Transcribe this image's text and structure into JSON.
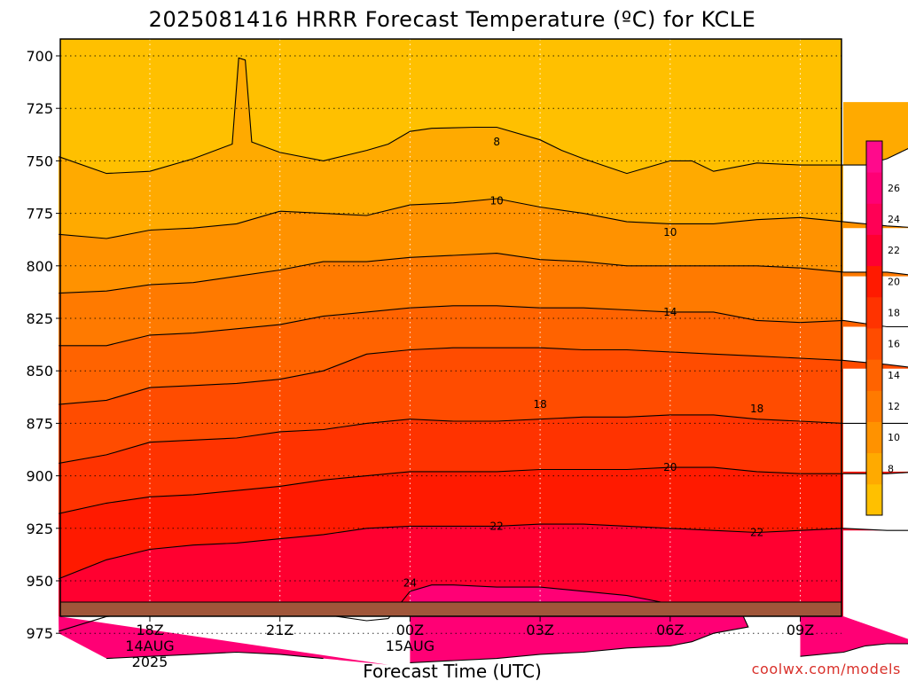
{
  "title": "2025081416 HRRR Forecast Temperature (ºC) for KCLE",
  "credit": "coolwx.com/models",
  "colors": {
    "ground": "#a0563a",
    "contour": "#000000",
    "bands": [
      "#ffc000",
      "#ffaa00",
      "#ff9200",
      "#ff7a00",
      "#ff6300",
      "#ff4c00",
      "#ff3300",
      "#ff1a00",
      "#ff0030",
      "#ff0055",
      "#ff0075",
      "#ff0a8c"
    ]
  },
  "chart_data": {
    "type": "contour",
    "title": "2025081416 HRRR Forecast Temperature (ºC) for KCLE",
    "xlabel": "Forecast Time (UTC)",
    "ylabel": "",
    "x_ticks": [
      {
        "hour": 2,
        "lines": [
          "18Z",
          "14AUG",
          "2025"
        ]
      },
      {
        "hour": 5,
        "lines": [
          "21Z"
        ]
      },
      {
        "hour": 8,
        "lines": [
          "00Z",
          "15AUG"
        ]
      },
      {
        "hour": 11,
        "lines": [
          "03Z"
        ]
      },
      {
        "hour": 14,
        "lines": [
          "06Z"
        ]
      },
      {
        "hour": 17,
        "lines": [
          "09Z"
        ]
      }
    ],
    "y_ticks": [
      700,
      725,
      750,
      775,
      800,
      825,
      850,
      875,
      900,
      925,
      950,
      975
    ],
    "y_inverted": true,
    "grid": true,
    "colorbar": {
      "levels": [
        6,
        8,
        10,
        12,
        14,
        16,
        18,
        20,
        22,
        24,
        26,
        28
      ],
      "labels": [
        8,
        10,
        12,
        14,
        16,
        18,
        20,
        22,
        24,
        26
      ]
    },
    "contours": [
      {
        "level": 8,
        "label": "8",
        "label_at": [
          {
            "hour": 10.0,
            "hpa": 741
          }
        ],
        "points": [
          [
            -0.1,
            748
          ],
          [
            1,
            756
          ],
          [
            2,
            755
          ],
          [
            3,
            749
          ],
          [
            3.9,
            742
          ],
          [
            4.05,
            701
          ],
          [
            4.2,
            702
          ],
          [
            4.35,
            741
          ],
          [
            5,
            746
          ],
          [
            6,
            750
          ],
          [
            7,
            745
          ],
          [
            7.5,
            742
          ],
          [
            8,
            736
          ],
          [
            8.5,
            734.5
          ],
          [
            9.5,
            734
          ],
          [
            10,
            734
          ],
          [
            11,
            740
          ],
          [
            11.5,
            745
          ],
          [
            12,
            749
          ],
          [
            13,
            756
          ],
          [
            13.5,
            753
          ],
          [
            14,
            750
          ],
          [
            14.5,
            750
          ],
          [
            15,
            755
          ],
          [
            16,
            751
          ],
          [
            17,
            752
          ],
          [
            18,
            752
          ],
          [
            18.5,
            752
          ],
          [
            19,
            749
          ],
          [
            19.5,
            744
          ],
          [
            19.8,
            722
          ]
        ]
      },
      {
        "level": 10,
        "label": "10",
        "label_at": [
          {
            "hour": 10.0,
            "hpa": 769
          },
          {
            "hour": 14.0,
            "hpa": 784
          }
        ],
        "points": [
          [
            -0.1,
            785
          ],
          [
            1,
            787
          ],
          [
            2,
            783
          ],
          [
            3,
            782
          ],
          [
            4,
            780
          ],
          [
            5,
            774
          ],
          [
            6,
            775
          ],
          [
            7,
            776
          ],
          [
            8,
            771
          ],
          [
            9,
            770
          ],
          [
            10,
            768
          ],
          [
            11,
            772
          ],
          [
            12,
            775
          ],
          [
            13,
            779
          ],
          [
            14,
            780
          ],
          [
            15,
            780
          ],
          [
            16,
            778
          ],
          [
            17,
            777
          ],
          [
            18,
            779
          ],
          [
            19,
            781
          ],
          [
            19.8,
            782
          ]
        ]
      },
      {
        "level": 12,
        "label": "",
        "label_at": [],
        "points": [
          [
            -0.1,
            813
          ],
          [
            1,
            812
          ],
          [
            2,
            809
          ],
          [
            3,
            808
          ],
          [
            4,
            805
          ],
          [
            5,
            802
          ],
          [
            6,
            798
          ],
          [
            7,
            798
          ],
          [
            8,
            796
          ],
          [
            9,
            795
          ],
          [
            10,
            794
          ],
          [
            11,
            797
          ],
          [
            12,
            798
          ],
          [
            13,
            800
          ],
          [
            14,
            800
          ],
          [
            15,
            800
          ],
          [
            16,
            800
          ],
          [
            17,
            801
          ],
          [
            18,
            803
          ],
          [
            19,
            803
          ],
          [
            19.8,
            805
          ]
        ]
      },
      {
        "level": 14,
        "label": "14",
        "label_at": [
          {
            "hour": 14.0,
            "hpa": 822
          }
        ],
        "points": [
          [
            -0.1,
            838
          ],
          [
            1,
            838
          ],
          [
            2,
            833
          ],
          [
            3,
            832
          ],
          [
            4,
            830
          ],
          [
            5,
            828
          ],
          [
            6,
            824
          ],
          [
            7,
            822
          ],
          [
            8,
            820
          ],
          [
            9,
            819
          ],
          [
            10,
            819
          ],
          [
            11,
            820
          ],
          [
            12,
            820
          ],
          [
            13,
            821
          ],
          [
            14,
            822
          ],
          [
            15,
            822
          ],
          [
            16,
            826
          ],
          [
            17,
            827
          ],
          [
            18,
            826
          ],
          [
            19,
            829
          ],
          [
            19.8,
            829
          ]
        ]
      },
      {
        "level": 16,
        "label": "",
        "label_at": [],
        "points": [
          [
            -0.1,
            866
          ],
          [
            1,
            864
          ],
          [
            2,
            858
          ],
          [
            3,
            857
          ],
          [
            4,
            856
          ],
          [
            5,
            854
          ],
          [
            6,
            850
          ],
          [
            7,
            842
          ],
          [
            8,
            840
          ],
          [
            9,
            839
          ],
          [
            10,
            839
          ],
          [
            11,
            839
          ],
          [
            12,
            840
          ],
          [
            13,
            840
          ],
          [
            14,
            841
          ],
          [
            15,
            842
          ],
          [
            16,
            843
          ],
          [
            17,
            844
          ],
          [
            18,
            845
          ],
          [
            19,
            847
          ],
          [
            19.8,
            849
          ]
        ]
      },
      {
        "level": 18,
        "label": "18",
        "label_at": [
          {
            "hour": 11.0,
            "hpa": 866
          },
          {
            "hour": 16.0,
            "hpa": 868
          }
        ],
        "points": [
          [
            -0.1,
            894
          ],
          [
            1,
            890
          ],
          [
            2,
            884
          ],
          [
            3,
            883
          ],
          [
            4,
            882
          ],
          [
            5,
            879
          ],
          [
            6,
            878
          ],
          [
            7,
            875
          ],
          [
            8,
            873
          ],
          [
            9,
            874
          ],
          [
            10,
            874
          ],
          [
            11,
            873
          ],
          [
            12,
            872
          ],
          [
            13,
            872
          ],
          [
            14,
            871
          ],
          [
            15,
            871
          ],
          [
            16,
            873
          ],
          [
            17,
            874
          ],
          [
            18,
            875
          ],
          [
            19,
            875
          ],
          [
            19.8,
            875
          ]
        ]
      },
      {
        "level": 20,
        "label": "20",
        "label_at": [
          {
            "hour": 14.0,
            "hpa": 896
          }
        ],
        "points": [
          [
            -0.1,
            918
          ],
          [
            1,
            913
          ],
          [
            2,
            910
          ],
          [
            3,
            909
          ],
          [
            4,
            907
          ],
          [
            5,
            905
          ],
          [
            6,
            902
          ],
          [
            7,
            900
          ],
          [
            8,
            898
          ],
          [
            9,
            898
          ],
          [
            10,
            898
          ],
          [
            11,
            897
          ],
          [
            12,
            897
          ],
          [
            13,
            897
          ],
          [
            14,
            896
          ],
          [
            15,
            896
          ],
          [
            16,
            898
          ],
          [
            17,
            899
          ],
          [
            18,
            899
          ],
          [
            19,
            899
          ],
          [
            19.8,
            898
          ]
        ]
      },
      {
        "level": 22,
        "label": "22",
        "label_at": [
          {
            "hour": 10.0,
            "hpa": 924
          },
          {
            "hour": 16.0,
            "hpa": 927
          }
        ],
        "points": [
          [
            -0.1,
            949
          ],
          [
            1,
            940
          ],
          [
            2,
            935
          ],
          [
            3,
            933
          ],
          [
            4,
            932
          ],
          [
            5,
            930
          ],
          [
            6,
            928
          ],
          [
            7,
            925
          ],
          [
            8,
            924
          ],
          [
            9,
            924
          ],
          [
            10,
            924
          ],
          [
            11,
            923
          ],
          [
            12,
            923
          ],
          [
            13,
            924
          ],
          [
            14,
            925
          ],
          [
            15,
            926
          ],
          [
            16,
            927
          ],
          [
            17,
            926
          ],
          [
            18,
            925
          ],
          [
            19,
            926
          ],
          [
            19.8,
            926
          ]
        ]
      },
      {
        "level": 24,
        "label": "24",
        "label_at": [
          {
            "hour": 8.0,
            "hpa": 951
          }
        ],
        "points": [
          [
            -0.1,
            974
          ],
          [
            1,
            967
          ],
          [
            2,
            965
          ],
          [
            3,
            964
          ],
          [
            4,
            963
          ],
          [
            5,
            962
          ],
          [
            6,
            966
          ],
          [
            7,
            969
          ],
          [
            7.5,
            968
          ],
          [
            8,
            955
          ],
          [
            8.5,
            952
          ],
          [
            9,
            952
          ],
          [
            10,
            953
          ],
          [
            11,
            953
          ],
          [
            12,
            955
          ],
          [
            13,
            957
          ],
          [
            14,
            961
          ],
          [
            15,
            962
          ],
          [
            15.6,
            963
          ],
          [
            15.8,
            972
          ],
          [
            15,
            975
          ],
          [
            14.5,
            979
          ],
          [
            14,
            981
          ],
          [
            13,
            982
          ],
          [
            12,
            984
          ],
          [
            11,
            985
          ],
          [
            10,
            987
          ],
          [
            9,
            988
          ],
          [
            8,
            989
          ]
        ]
      },
      {
        "level": 24,
        "label": "",
        "label_at": [],
        "points": [
          [
            1,
            987
          ],
          [
            2,
            986
          ],
          [
            3,
            985
          ],
          [
            4,
            984
          ],
          [
            5,
            985
          ],
          [
            6,
            987
          ]
        ]
      },
      {
        "level": 24,
        "label": "",
        "label_at": [],
        "points": [
          [
            17,
            986
          ],
          [
            18,
            984
          ],
          [
            18.5,
            981
          ],
          [
            19,
            980
          ],
          [
            19.8,
            980
          ]
        ]
      }
    ]
  }
}
